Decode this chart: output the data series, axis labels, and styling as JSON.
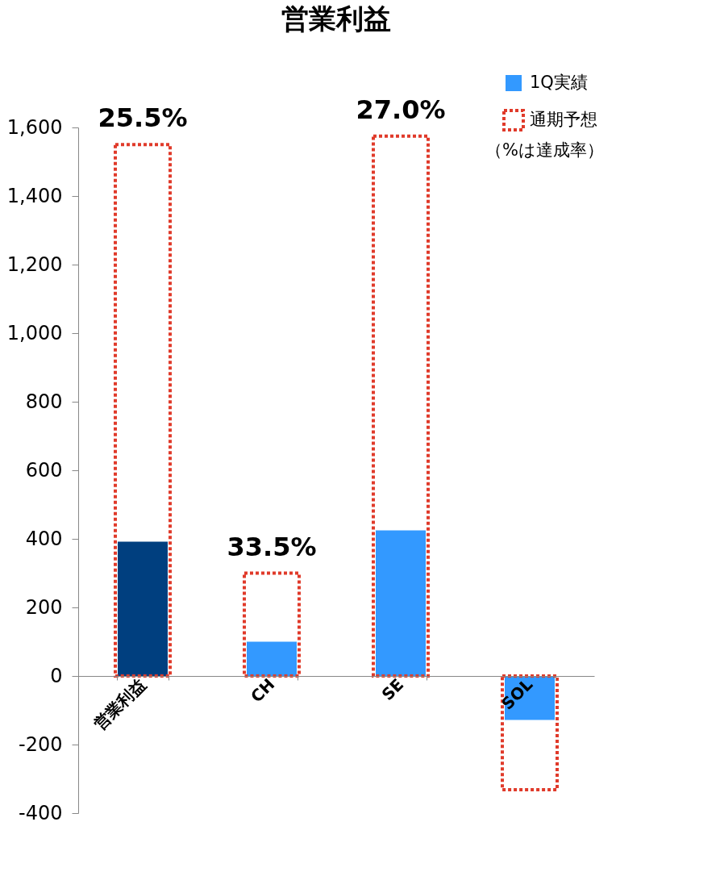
{
  "chart_data": {
    "type": "bar",
    "title": "営業利益",
    "categories": [
      "営業利益",
      "CH",
      "SE",
      "SOL"
    ],
    "series": [
      {
        "name": "1Q実績",
        "color": "#3399ff",
        "colors": [
          "#003f7f",
          "#3399ff",
          "#3399ff",
          "#3399ff"
        ],
        "values": [
          392,
          100,
          425,
          -128
        ]
      },
      {
        "name": "通期予想",
        "color": "#e03a2a",
        "line_style": "dotted",
        "values": [
          1550,
          300,
          1575,
          -332
        ]
      }
    ],
    "ylim": [
      -400,
      1600
    ],
    "yticks": [
      -400,
      -200,
      0,
      200,
      400,
      600,
      800,
      {
        "value": 1000,
        "label": "1,000"
      },
      {
        "value": 1200,
        "label": "1,200"
      },
      {
        "value": 1400,
        "label": "1,400"
      },
      {
        "value": 1600,
        "label": "1,600"
      }
    ],
    "grid": false,
    "legend": "top right",
    "annotations": [
      "25.5%",
      "33.5%",
      "27.0%",
      "（%は達成率）"
    ]
  }
}
